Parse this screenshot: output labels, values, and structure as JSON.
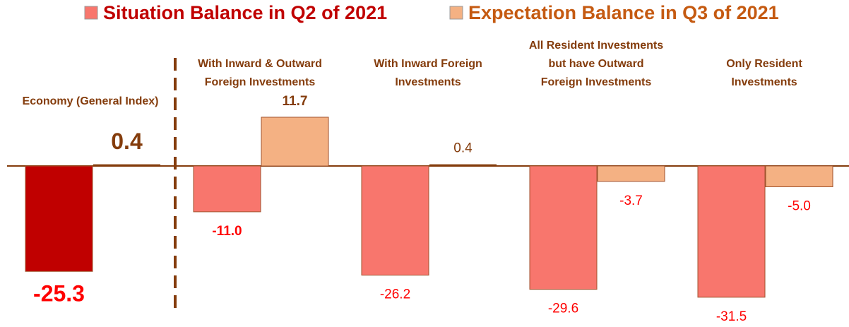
{
  "chart_data": {
    "type": "bar",
    "categories": [
      "Economy (General Index)",
      "With Inward & Outward\nForeign Investments",
      "With Inward Foreign\nInvestments",
      "All Resident Investments\nbut have Outward\nForeign Investments",
      "Only Resident\nInvestments"
    ],
    "series": [
      {
        "name": "Situation Balance in Q2 of 2021",
        "color": "#f8766d",
        "colors": [
          "#c00000",
          "#f8766d",
          "#f8766d",
          "#f8766d",
          "#f8766d"
        ],
        "values": [
          -25.3,
          -11.0,
          -26.2,
          -29.6,
          -31.5
        ],
        "value_labels": [
          "-25.3",
          "-11.0",
          "-26.2",
          "-29.6",
          "-31.5"
        ]
      },
      {
        "name": "Expectation Balance in Q3 of 2021",
        "color": "#f4b183",
        "colors": [
          "#843c0c",
          "#f4b183",
          "#843c0c",
          "#f4b183",
          "#f4b183"
        ],
        "values": [
          0.4,
          11.7,
          0.4,
          -3.7,
          -5.0
        ],
        "value_labels": [
          "0.4",
          "11.7",
          "0.4",
          "-3.7",
          "-5.0"
        ]
      }
    ],
    "ylim": [
      -35,
      15
    ],
    "legend": "top"
  }
}
